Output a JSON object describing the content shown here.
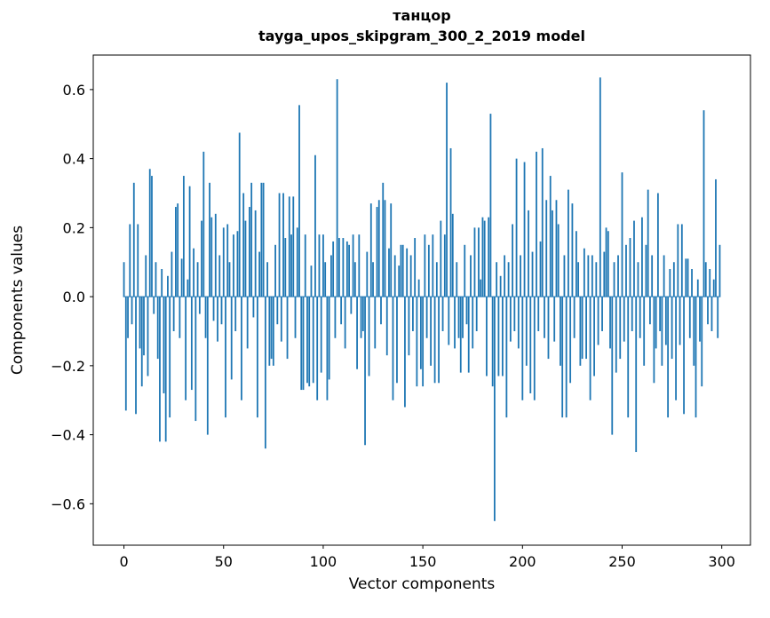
{
  "figure": {
    "background": "#ffffff"
  },
  "chart_data": {
    "type": "bar",
    "title": "танцор",
    "subtitle": "tayga_upos_skipgram_300_2_2019 model",
    "xlabel": "Vector components",
    "ylabel": "Components values",
    "bar_color": "#1f77b4",
    "axis_color": "#000000",
    "grid": false,
    "legend": false,
    "x_is_index": true,
    "xlim": [
      -15.4,
      314.4
    ],
    "ylim": [
      -0.72,
      0.7
    ],
    "xticks": [
      0,
      50,
      100,
      150,
      200,
      250,
      300
    ],
    "xtick_labels": [
      "0",
      "50",
      "100",
      "150",
      "200",
      "250",
      "300"
    ],
    "yticks": [
      -0.6,
      -0.4,
      -0.2,
      0.0,
      0.2,
      0.4,
      0.6
    ],
    "ytick_labels": [
      "−0.6",
      "−0.4",
      "−0.2",
      "0.0",
      "0.2",
      "0.4",
      "0.6"
    ],
    "values": [
      0.1,
      -0.33,
      -0.12,
      0.21,
      -0.08,
      0.33,
      -0.34,
      0.21,
      -0.15,
      -0.26,
      -0.17,
      0.12,
      -0.23,
      0.37,
      0.35,
      -0.05,
      0.1,
      -0.18,
      -0.42,
      0.08,
      -0.28,
      -0.42,
      0.06,
      -0.35,
      0.13,
      -0.1,
      0.26,
      0.27,
      -0.12,
      0.11,
      0.35,
      -0.3,
      0.05,
      0.32,
      -0.27,
      0.14,
      -0.36,
      0.1,
      -0.05,
      0.22,
      0.42,
      -0.12,
      -0.4,
      0.33,
      0.23,
      -0.07,
      0.24,
      -0.13,
      0.12,
      -0.08,
      0.2,
      -0.35,
      0.21,
      0.1,
      -0.24,
      0.18,
      -0.1,
      0.19,
      0.475,
      -0.3,
      0.3,
      0.22,
      -0.15,
      0.26,
      0.33,
      -0.06,
      0.25,
      -0.35,
      0.13,
      0.33,
      0.33,
      -0.44,
      0.1,
      -0.2,
      -0.18,
      -0.2,
      0.15,
      -0.08,
      0.3,
      -0.13,
      0.3,
      0.17,
      -0.18,
      0.29,
      0.18,
      0.29,
      -0.12,
      0.2,
      0.555,
      -0.27,
      -0.27,
      0.18,
      -0.25,
      -0.26,
      0.09,
      -0.25,
      0.41,
      -0.3,
      0.18,
      -0.22,
      0.18,
      0.1,
      -0.3,
      -0.24,
      0.12,
      0.16,
      -0.12,
      0.63,
      0.17,
      -0.08,
      0.17,
      -0.15,
      0.16,
      0.15,
      -0.05,
      0.18,
      0.1,
      -0.21,
      0.18,
      -0.12,
      -0.1,
      -0.43,
      0.13,
      -0.23,
      0.27,
      0.1,
      -0.15,
      0.26,
      0.28,
      -0.08,
      0.33,
      0.28,
      -0.17,
      0.14,
      0.27,
      -0.3,
      0.12,
      -0.25,
      0.09,
      0.15,
      0.15,
      -0.32,
      0.14,
      -0.17,
      0.12,
      -0.1,
      0.17,
      -0.26,
      0.05,
      -0.21,
      -0.26,
      0.18,
      -0.12,
      0.15,
      -0.2,
      0.18,
      -0.25,
      0.1,
      -0.25,
      0.22,
      -0.1,
      0.18,
      0.62,
      -0.14,
      0.43,
      0.24,
      -0.15,
      0.1,
      -0.12,
      -0.22,
      -0.12,
      0.15,
      -0.08,
      -0.22,
      0.12,
      -0.15,
      0.2,
      -0.1,
      0.2,
      0.05,
      0.23,
      0.22,
      -0.23,
      0.23,
      0.53,
      -0.26,
      -0.65,
      0.1,
      -0.23,
      0.06,
      -0.23,
      0.12,
      -0.35,
      0.1,
      -0.13,
      0.21,
      -0.1,
      0.4,
      -0.15,
      0.12,
      -0.3,
      0.39,
      -0.2,
      0.25,
      -0.28,
      0.13,
      -0.3,
      0.42,
      -0.1,
      0.16,
      0.43,
      -0.12,
      0.28,
      -0.18,
      0.35,
      0.25,
      -0.13,
      0.28,
      0.21,
      -0.2,
      -0.35,
      0.12,
      -0.35,
      0.31,
      -0.25,
      0.27,
      -0.12,
      0.19,
      0.1,
      -0.2,
      -0.18,
      0.14,
      -0.18,
      0.12,
      -0.3,
      0.12,
      -0.23,
      0.1,
      -0.14,
      0.635,
      -0.1,
      0.13,
      0.2,
      0.19,
      -0.15,
      -0.4,
      0.1,
      -0.22,
      0.12,
      -0.18,
      0.36,
      -0.13,
      0.15,
      -0.35,
      0.17,
      -0.1,
      0.22,
      -0.45,
      0.1,
      -0.12,
      0.23,
      -0.2,
      0.15,
      0.31,
      -0.08,
      0.12,
      -0.25,
      -0.15,
      0.3,
      -0.1,
      -0.2,
      0.12,
      -0.14,
      -0.35,
      0.08,
      -0.18,
      0.1,
      -0.3,
      0.21,
      -0.14,
      0.21,
      -0.34,
      0.11,
      0.11,
      -0.12,
      0.08,
      -0.2,
      -0.35,
      0.05,
      -0.13,
      -0.26,
      0.54,
      0.1,
      -0.08,
      0.08,
      -0.1,
      0.05,
      0.34,
      -0.12,
      0.15
    ]
  }
}
